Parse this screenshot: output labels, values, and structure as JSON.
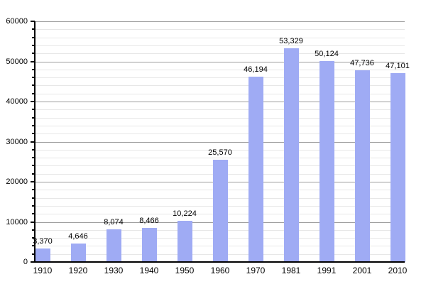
{
  "chart_data": {
    "type": "bar",
    "title": "",
    "xlabel": "",
    "ylabel": "",
    "categories": [
      "1910",
      "1920",
      "1930",
      "1940",
      "1950",
      "1960",
      "1970",
      "1981",
      "1991",
      "2001",
      "2010"
    ],
    "values": [
      3370,
      4646,
      8074,
      8466,
      10224,
      25570,
      46194,
      53329,
      50124,
      47736,
      47101
    ],
    "value_labels": [
      "3,370",
      "4,646",
      "8,074",
      "8,466",
      "10,224",
      "25,570",
      "46,194",
      "53,329",
      "50,124",
      "47,736",
      "47,101"
    ],
    "ylim": [
      0,
      60000
    ],
    "y_major_step": 10000,
    "y_minor_step": 2000,
    "y_tick_labels": [
      "0",
      "10000",
      "20000",
      "30000",
      "40000",
      "50000",
      "60000"
    ],
    "grid": true,
    "legend": false,
    "colors": {
      "bar_fill": "#9fabf4",
      "major_gridline": "#9e9e9e",
      "minor_gridline": "#e7e7e7",
      "axis": "#000000",
      "text": "#000000",
      "background": "#ffffff"
    }
  }
}
